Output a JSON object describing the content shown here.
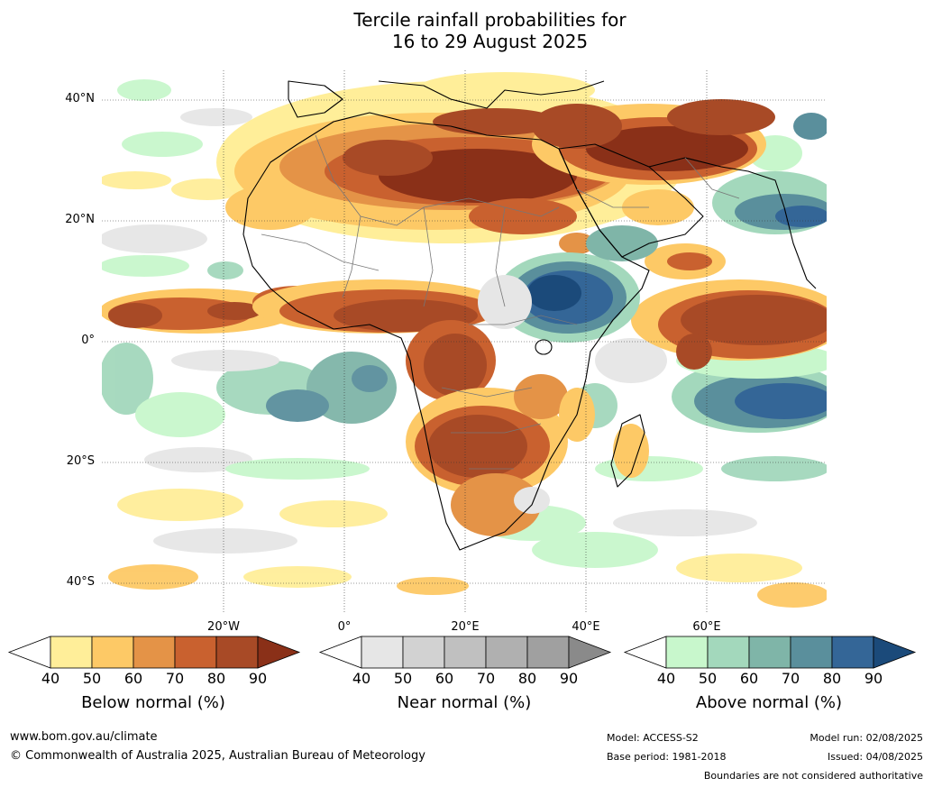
{
  "title": {
    "line1": "Tercile rainfall probabilities for",
    "line2": "16 to 29 August 2025"
  },
  "map": {
    "lat_labels": [
      "40°N",
      "20°N",
      "0°",
      "20°S",
      "40°S"
    ],
    "lon_labels": [
      "20°W",
      "0°",
      "20°E",
      "40°E",
      "60°E"
    ]
  },
  "colorbars": [
    {
      "name": "below",
      "title": "Below normal (%)",
      "ticks": [
        "40",
        "50",
        "60",
        "70",
        "80",
        "90"
      ],
      "colors": [
        "#ffee99",
        "#fdc966",
        "#e49347",
        "#c9612f",
        "#a84a26",
        "#8a3018"
      ]
    },
    {
      "name": "near",
      "title": "Near normal (%)",
      "ticks": [
        "40",
        "50",
        "60",
        "70",
        "80",
        "90"
      ],
      "colors": [
        "#e6e6e6",
        "#d2d2d2",
        "#c0c0c0",
        "#b0b0b0",
        "#a0a0a0",
        "#8a8a8a"
      ]
    },
    {
      "name": "above",
      "title": "Above normal (%)",
      "ticks": [
        "40",
        "50",
        "60",
        "70",
        "80",
        "90"
      ],
      "colors": [
        "#c8f7cc",
        "#a3d8bc",
        "#7fb5a8",
        "#5a8f9c",
        "#346697",
        "#1b4a7a"
      ]
    }
  ],
  "footer": {
    "website": "www.bom.gov.au/climate",
    "copyright": "© Commonwealth of Australia 2025, Australian Bureau of Meteorology",
    "model": "Model: ACCESS-S2",
    "base_period": "Base period: 1981-2018",
    "model_run": "Model run: 02/08/2025",
    "issued": "Issued: 04/08/2025",
    "disclaimer": "Boundaries are not considered authoritative"
  }
}
